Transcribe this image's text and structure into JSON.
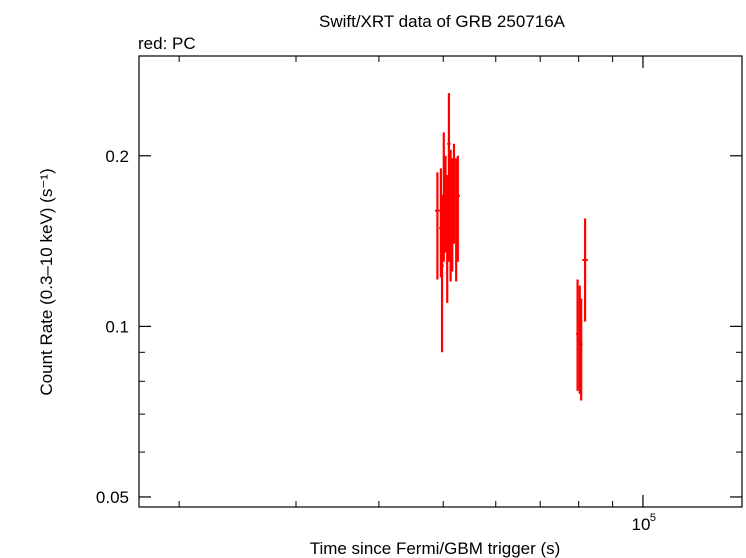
{
  "chart_data": {
    "type": "scatter",
    "title": "Swift/XRT data of GRB 250716A",
    "subtitle": "red: PC",
    "xlabel": "Time since Fermi/GBM trigger (s)",
    "ylabel": "Count Rate (0.3–10 keV) (s⁻¹)",
    "x_scale": "log",
    "y_scale": "log",
    "xlim": [
      17400,
      141000
    ],
    "ylim": [
      0.048,
      0.3
    ],
    "x_ticks": [
      {
        "value": 100000,
        "label": "10",
        "exponent": "5"
      }
    ],
    "y_ticks": [
      {
        "value": 0.05,
        "label": "0.05"
      },
      {
        "value": 0.1,
        "label": "0.1"
      },
      {
        "value": 0.2,
        "label": "0.2"
      }
    ],
    "series": [
      {
        "color": "#ff0000",
        "points": [
          {
            "x": 49000,
            "xerr": [
              48600,
              49400
            ],
            "y": 0.16,
            "yerr": [
              0.121,
              0.187
            ]
          },
          {
            "x": 49600,
            "xerr": [
              49300,
              49900
            ],
            "y": 0.149,
            "yerr": [
              0.122,
              0.19
            ]
          },
          {
            "x": 49800,
            "xerr": [
              49500,
              50100
            ],
            "y": 0.128,
            "yerr": [
              0.09,
              0.17
            ]
          },
          {
            "x": 50100,
            "xerr": [
              49800,
              50400
            ],
            "y": 0.17,
            "yerr": [
              0.13,
              0.22
            ]
          },
          {
            "x": 50400,
            "xerr": [
              50100,
              50700
            ],
            "y": 0.18,
            "yerr": [
              0.135,
              0.2
            ]
          },
          {
            "x": 50700,
            "xerr": [
              50400,
              51000
            ],
            "y": 0.15,
            "yerr": [
              0.11,
              0.185
            ]
          },
          {
            "x": 51000,
            "xerr": [
              50700,
              51300
            ],
            "y": 0.21,
            "yerr": [
              0.13,
              0.258
            ]
          },
          {
            "x": 51300,
            "xerr": [
              51000,
              51600
            ],
            "y": 0.17,
            "yerr": [
              0.12,
              0.205
            ]
          },
          {
            "x": 51600,
            "xerr": [
              51300,
              51900
            ],
            "y": 0.16,
            "yerr": [
              0.125,
              0.198
            ]
          },
          {
            "x": 51900,
            "xerr": [
              51600,
              52200
            ],
            "y": 0.18,
            "yerr": [
              0.14,
              0.21
            ]
          },
          {
            "x": 52300,
            "xerr": [
              52000,
              52600
            ],
            "y": 0.16,
            "yerr": [
              0.12,
              0.198
            ]
          },
          {
            "x": 52600,
            "xerr": [
              52300,
              53000
            ],
            "y": 0.17,
            "yerr": [
              0.13,
              0.2
            ]
          },
          {
            "x": 79700,
            "xerr": [
              79300,
              80100
            ],
            "y": 0.097,
            "yerr": [
              0.077,
              0.121
            ]
          },
          {
            "x": 80300,
            "xerr": [
              79900,
              80700
            ],
            "y": 0.1,
            "yerr": [
              0.076,
              0.118
            ]
          },
          {
            "x": 80700,
            "xerr": [
              80300,
              81100
            ],
            "y": 0.093,
            "yerr": [
              0.074,
              0.112
            ]
          },
          {
            "x": 81800,
            "xerr": [
              81000,
              82600
            ],
            "y": 0.131,
            "yerr": [
              0.102,
              0.155
            ]
          }
        ]
      }
    ]
  }
}
